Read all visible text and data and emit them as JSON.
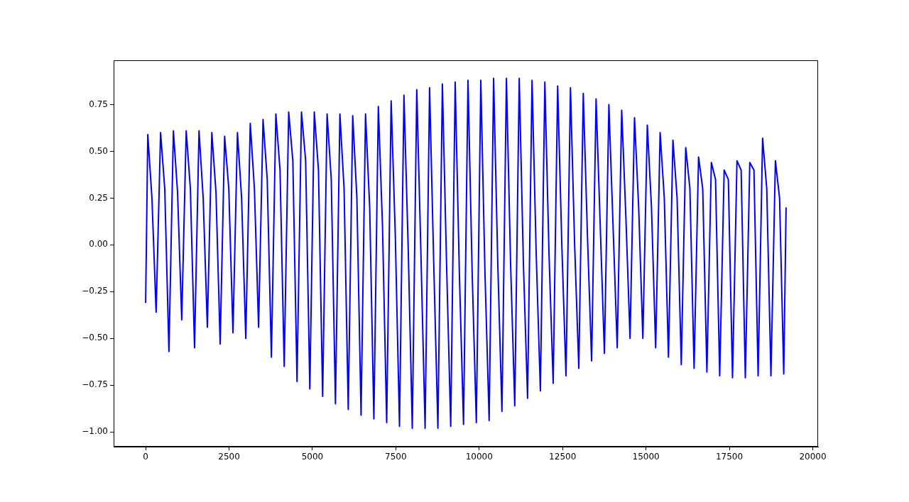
{
  "chart_data": {
    "type": "line",
    "xlim": [
      -960,
      20160
    ],
    "ylim": [
      -1.079,
      0.987
    ],
    "xticks": [
      0,
      2500,
      5000,
      7500,
      10000,
      12500,
      15000,
      17500,
      20000
    ],
    "yticks": [
      {
        "value": -1,
        "label": "−1.00"
      },
      {
        "value": -0.75,
        "label": "−0.75"
      },
      {
        "value": -0.5,
        "label": "−0.50"
      },
      {
        "value": -0.25,
        "label": "−0.25"
      },
      {
        "value": 0,
        "label": "0.00"
      },
      {
        "value": 0.25,
        "label": "0.25"
      },
      {
        "value": 0.5,
        "label": "0.50"
      },
      {
        "value": 0.75,
        "label": "0.75"
      }
    ],
    "grid": false,
    "legend": false,
    "marker": "none",
    "line_style": "solid",
    "series": [
      {
        "color": "#0000ff",
        "x": [
          0,
          64,
          189,
          314,
          448,
          573,
          698,
          832,
          957,
          1082,
          1216,
          1341,
          1466,
          1600,
          1725,
          1850,
          1984,
          2109,
          2234,
          2368,
          2493,
          2618,
          2752,
          2877,
          3002,
          3136,
          3261,
          3386,
          3520,
          3645,
          3770,
          3904,
          4029,
          4154,
          4288,
          4413,
          4538,
          4672,
          4797,
          4922,
          5056,
          5181,
          5306,
          5440,
          5565,
          5690,
          5824,
          5949,
          6074,
          6208,
          6333,
          6458,
          6592,
          6717,
          6842,
          6976,
          7101,
          7226,
          7360,
          7485,
          7610,
          7744,
          7869,
          7994,
          8128,
          8253,
          8378,
          8512,
          8637,
          8762,
          8896,
          9021,
          9146,
          9280,
          9405,
          9530,
          9664,
          9789,
          9914,
          10048,
          10173,
          10298,
          10432,
          10557,
          10682,
          10816,
          10941,
          11066,
          11200,
          11325,
          11450,
          11584,
          11709,
          11834,
          11968,
          12093,
          12218,
          12352,
          12477,
          12602,
          12736,
          12861,
          12986,
          13120,
          13245,
          13370,
          13504,
          13629,
          13754,
          13888,
          14013,
          14138,
          14272,
          14397,
          14522,
          14656,
          14781,
          14906,
          15040,
          15165,
          15290,
          15424,
          15549,
          15674,
          15808,
          15933,
          16058,
          16192,
          16317,
          16442,
          16576,
          16701,
          16826,
          16960,
          17085,
          17210,
          17344,
          17469,
          17594,
          17728,
          17853,
          17978,
          18112,
          18237,
          18362,
          18496,
          18621,
          18746,
          18880,
          19005,
          19130,
          19200
        ],
        "values": [
          -0.31,
          0.59,
          0.25,
          -0.36,
          0.6,
          0.3,
          -0.57,
          0.61,
          0.28,
          -0.4,
          0.61,
          0.3,
          -0.55,
          0.61,
          0.25,
          -0.44,
          0.6,
          0.28,
          -0.53,
          0.58,
          0.3,
          -0.47,
          0.6,
          0.25,
          -0.5,
          0.65,
          0.3,
          -0.44,
          0.67,
          0.35,
          -0.6,
          0.7,
          0.4,
          -0.65,
          0.71,
          0.45,
          -0.73,
          0.71,
          0.45,
          -0.77,
          0.71,
          0.4,
          -0.81,
          0.7,
          0.35,
          -0.85,
          0.7,
          0.3,
          -0.88,
          0.69,
          0.25,
          -0.91,
          0.7,
          0.2,
          -0.93,
          0.74,
          0.1,
          -0.95,
          0.77,
          0.05,
          -0.97,
          0.8,
          0,
          -0.98,
          0.83,
          -0.05,
          -0.98,
          0.84,
          -0.1,
          -0.98,
          0.86,
          -0.1,
          -0.97,
          0.87,
          -0.15,
          -0.96,
          0.88,
          -0.15,
          -0.95,
          0.88,
          -0.15,
          -0.94,
          0.89,
          -0.1,
          -0.89,
          0.89,
          -0.1,
          -0.86,
          0.89,
          -0.1,
          -0.82,
          0.88,
          -0.05,
          -0.78,
          0.87,
          -0.05,
          -0.74,
          0.85,
          0,
          -0.7,
          0.84,
          0,
          -0.66,
          0.81,
          0.05,
          -0.62,
          0.78,
          0.1,
          -0.58,
          0.75,
          0.1,
          -0.55,
          0.72,
          0.15,
          -0.5,
          0.68,
          0.2,
          -0.5,
          0.64,
          0.2,
          -0.55,
          0.6,
          0.25,
          -0.6,
          0.56,
          0.25,
          -0.64,
          0.52,
          0.3,
          -0.66,
          0.47,
          0.3,
          -0.68,
          0.44,
          0.35,
          -0.7,
          0.4,
          0.35,
          -0.71,
          0.45,
          0.4,
          -0.71,
          0.44,
          0.4,
          -0.7,
          0.57,
          0.3,
          -0.7,
          0.45,
          0.25,
          -0.69,
          0.2
        ]
      }
    ]
  }
}
